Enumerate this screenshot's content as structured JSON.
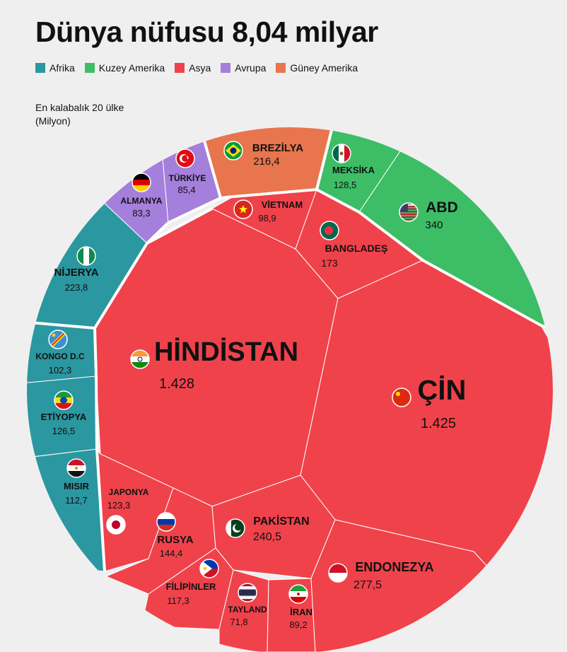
{
  "title": "Dünya nüfusu 8,04 milyar",
  "subtitle_line1": "En kalabalık 20 ülke",
  "subtitle_line2": "(Milyon)",
  "legend": [
    {
      "label": "Afrika",
      "color": "#2b97a0"
    },
    {
      "label": "Kuzey Amerika",
      "color": "#3dbd66"
    },
    {
      "label": "Asya",
      "color": "#f0424b"
    },
    {
      "label": "Avrupa",
      "color": "#a47fdb"
    },
    {
      "label": "Güney Amerika",
      "color": "#e8754d"
    }
  ],
  "chart_data": {
    "type": "voronoi-treemap",
    "unit": "Milyon",
    "series": [
      {
        "name": "Afrika",
        "color": "#2b97a0",
        "items": [
          {
            "country": "NİJERYA",
            "value": "223,8"
          },
          {
            "country": "KONGO D.C",
            "value": "102,3"
          },
          {
            "country": "ETİYOPYA",
            "value": "126,5"
          },
          {
            "country": "MISIR",
            "value": "112,7"
          }
        ]
      },
      {
        "name": "Kuzey Amerika",
        "color": "#3dbd66",
        "items": [
          {
            "country": "MEKSİKA",
            "value": "128,5"
          },
          {
            "country": "ABD",
            "value": "340"
          }
        ]
      },
      {
        "name": "Asya",
        "color": "#f0424b",
        "items": [
          {
            "country": "HİNDİSTAN",
            "value": "1.428"
          },
          {
            "country": "ÇİN",
            "value": "1.425"
          },
          {
            "country": "VİETNAM",
            "value": "98,9"
          },
          {
            "country": "BANGLADEŞ",
            "value": "173"
          },
          {
            "country": "JAPONYA",
            "value": "123,3"
          },
          {
            "country": "RUSYA",
            "value": "144,4"
          },
          {
            "country": "PAKİSTAN",
            "value": "240,5"
          },
          {
            "country": "FİLİPİNLER",
            "value": "117,3"
          },
          {
            "country": "TAYLAND",
            "value": "71,8"
          },
          {
            "country": "İRAN",
            "value": "89,2"
          },
          {
            "country": "ENDONEZYA",
            "value": "277,5"
          }
        ]
      },
      {
        "name": "Avrupa",
        "color": "#a47fdb",
        "items": [
          {
            "country": "ALMANYA",
            "value": "83,3"
          },
          {
            "country": "TÜRKİYE",
            "value": "85,4"
          }
        ]
      },
      {
        "name": "Güney Amerika",
        "color": "#e8754d",
        "items": [
          {
            "country": "BREZİLYA",
            "value": "216,4"
          }
        ]
      }
    ]
  }
}
